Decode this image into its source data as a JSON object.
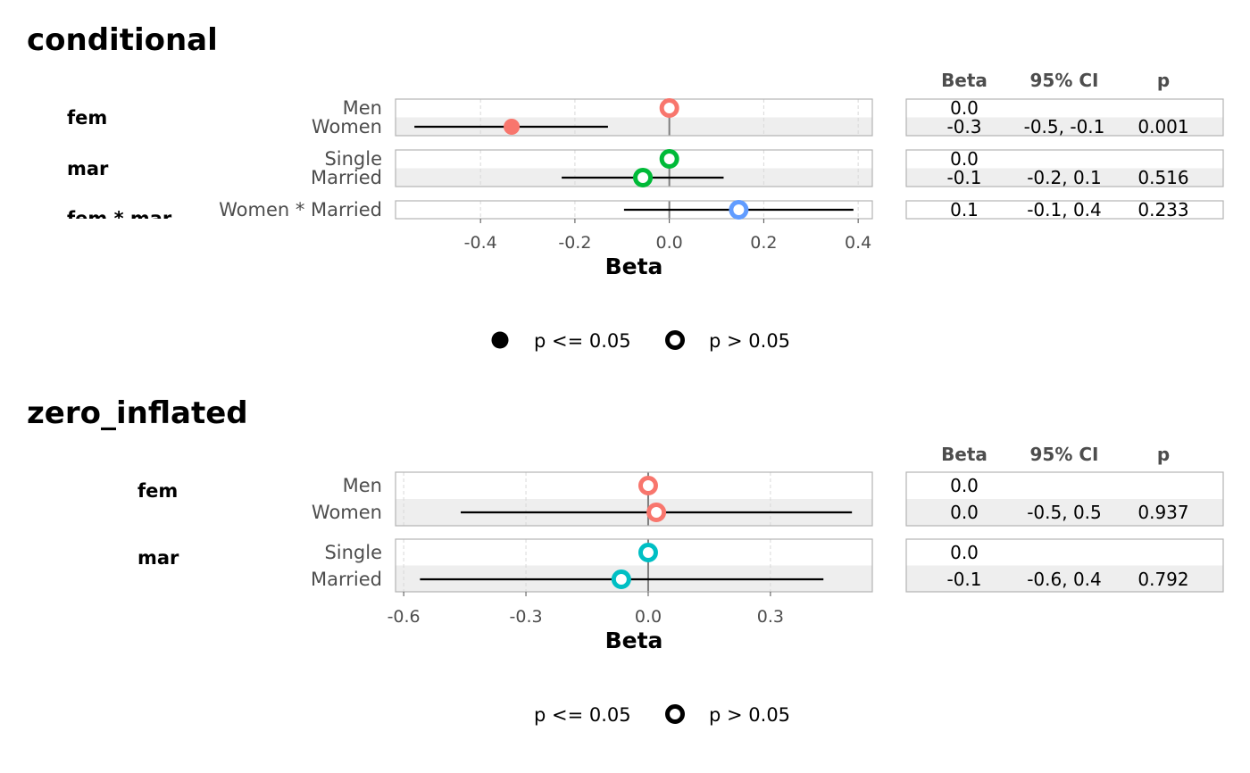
{
  "chart_data": [
    {
      "type": "forest",
      "title": "conditional",
      "xlabel": "Beta",
      "xlim": [
        -0.58,
        0.43
      ],
      "xticks": [
        -0.4,
        -0.2,
        0.0,
        0.2,
        0.4
      ],
      "xtick_labels": [
        "-0.4",
        "-0.2",
        "0.0",
        "0.2",
        "0.4"
      ],
      "grid": true,
      "table_headers": [
        "Beta",
        "95% CI",
        "p"
      ],
      "groups": [
        {
          "name": "fem",
          "color": "#F8766D",
          "rows": [
            {
              "term": "Men",
              "beta": 0.0,
              "ci_low": null,
              "ci_high": null,
              "filled": false,
              "beta_label": "0.0",
              "ci_label": "",
              "p_label": ""
            },
            {
              "term": "Women",
              "beta": -0.334,
              "ci_low": -0.54,
              "ci_high": -0.13,
              "filled": true,
              "beta_label": "-0.3",
              "ci_label": "-0.5, -0.1",
              "p_label": "0.001"
            }
          ]
        },
        {
          "name": "mar",
          "color": "#00BA38",
          "rows": [
            {
              "term": "Single",
              "beta": 0.0,
              "ci_low": null,
              "ci_high": null,
              "filled": false,
              "beta_label": "0.0",
              "ci_label": "",
              "p_label": ""
            },
            {
              "term": "Married",
              "beta": -0.056,
              "ci_low": -0.228,
              "ci_high": 0.115,
              "filled": false,
              "beta_label": "-0.1",
              "ci_label": "-0.2, 0.1",
              "p_label": "0.516"
            }
          ]
        },
        {
          "name": "fem * mar",
          "color": "#619CFF",
          "rows": [
            {
              "term": "Women * Married",
              "beta": 0.147,
              "ci_low": -0.096,
              "ci_high": 0.39,
              "filled": false,
              "beta_label": "0.1",
              "ci_label": "-0.1, 0.4",
              "p_label": "0.233"
            }
          ]
        }
      ],
      "legend": {
        "position": "bottom",
        "items": [
          {
            "label": "p <= 0.05",
            "filled": true
          },
          {
            "label": "p > 0.05",
            "filled": false
          }
        ]
      }
    },
    {
      "type": "forest",
      "title": "zero_inflated",
      "xlabel": "Beta",
      "xlim": [
        -0.62,
        0.55
      ],
      "xticks": [
        -0.6,
        -0.3,
        0.0,
        0.3
      ],
      "xtick_labels": [
        "-0.6",
        "-0.3",
        "0.0",
        "0.3"
      ],
      "grid": true,
      "table_headers": [
        "Beta",
        "95% CI",
        "p"
      ],
      "groups": [
        {
          "name": "fem",
          "color": "#F8766D",
          "rows": [
            {
              "term": "Men",
              "beta": 0.0,
              "ci_low": null,
              "ci_high": null,
              "filled": false,
              "beta_label": "0.0",
              "ci_label": "",
              "p_label": ""
            },
            {
              "term": "Women",
              "beta": 0.02,
              "ci_low": -0.46,
              "ci_high": 0.5,
              "filled": false,
              "beta_label": "0.0",
              "ci_label": "-0.5, 0.5",
              "p_label": "0.937"
            }
          ]
        },
        {
          "name": "mar",
          "color": "#00BFC4",
          "rows": [
            {
              "term": "Single",
              "beta": 0.0,
              "ci_low": null,
              "ci_high": null,
              "filled": false,
              "beta_label": "0.0",
              "ci_label": "",
              "p_label": ""
            },
            {
              "term": "Married",
              "beta": -0.066,
              "ci_low": -0.56,
              "ci_high": 0.43,
              "filled": false,
              "beta_label": "-0.1",
              "ci_label": "-0.6, 0.4",
              "p_label": "0.792"
            }
          ]
        }
      ],
      "legend": {
        "position": "bottom",
        "items": [
          {
            "label": "p <= 0.05",
            "filled": true
          },
          {
            "label": "p > 0.05",
            "filled": false
          }
        ]
      }
    }
  ]
}
